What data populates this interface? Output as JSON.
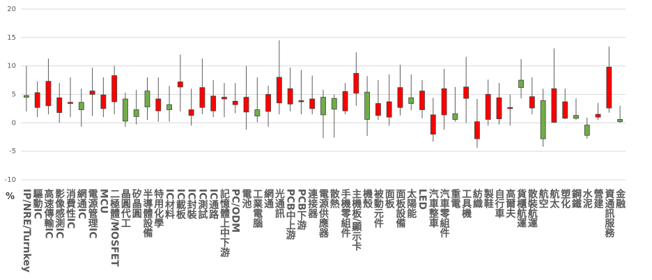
{
  "chart_data": {
    "type": "candlestick",
    "y_unit": "%",
    "categories": [
      "IP/NRE/Turnkey",
      "驅動IC",
      "高速傳輸IC",
      "影像感測IC",
      "消費性IC",
      "網通IC",
      "電源管理IC",
      "MCU",
      "二極體/MOSFET",
      "晶圓代工",
      "矽晶圓",
      "半導體設備",
      "特用化學",
      "IC材料",
      "IC載板",
      "IC封裝",
      "IC測試",
      "IC通路",
      "記憶體上中下游",
      "PC/ODM",
      "電池",
      "工業電腦",
      "網通",
      "光通訊",
      "PCB中上游",
      "PCB下游",
      "連接器",
      "電源供應器",
      "散熱",
      "手機零組件",
      "主機板/顯示卡",
      "機殼",
      "被動元件",
      "面板",
      "面板設備",
      "太陽能",
      "LED",
      "汽車整車",
      "汽車零組件",
      "重電",
      "工具機",
      "紡織",
      "製鞋",
      "自行車",
      "高爾夫",
      "貨櫃航運",
      "散裝航運",
      "航空",
      "航太",
      "塑化",
      "鋼鐵",
      "水泥",
      "營建",
      "資通訊服務",
      "金融"
    ],
    "open": [
      4.8,
      2.7,
      3,
      1.8,
      3.4,
      3.6,
      5,
      2.5,
      3.7,
      4.2,
      2.3,
      5.6,
      2.1,
      3.2,
      6.3,
      1.3,
      2.7,
      2.1,
      4.2,
      3.2,
      1.9,
      2.3,
      2,
      3.5,
      3.3,
      3.7,
      2.5,
      4.5,
      4.3,
      2.1,
      5.2,
      5.4,
      1.3,
      1,
      2.7,
      4.4,
      2.3,
      -2,
      1.4,
      1.6,
      4.3,
      -2.8,
      0.6,
      0.7,
      2.5,
      7.5,
      2.6,
      3.9,
      0.1,
      0.8,
      1.3,
      -0.4,
      1,
      2.6,
      0.6
    ],
    "close": [
      4.5,
      5.3,
      7.3,
      4.4,
      3.6,
      2.3,
      5.6,
      4.9,
      8.3,
      0.3,
      1.1,
      2.8,
      4.2,
      2.3,
      7.2,
      2.3,
      6.2,
      4.7,
      4.5,
      3.8,
      4.5,
      1.2,
      5,
      8,
      6,
      3.9,
      4.2,
      1.4,
      2.4,
      5.5,
      8.7,
      0.6,
      3.4,
      3.7,
      6.2,
      3.4,
      5.6,
      1.4,
      6,
      0.6,
      6.3,
      0.2,
      5,
      4.4,
      2.7,
      6.2,
      4.6,
      -2.8,
      6,
      3.7,
      0.8,
      -2.2,
      1.5,
      9.8,
      0.2
    ],
    "low": [
      2,
      1,
      1.5,
      0,
      1,
      -0.7,
      1.2,
      1,
      1.5,
      -0.7,
      -0.3,
      0.5,
      0.2,
      0.2,
      2,
      -0.5,
      1.5,
      1,
      1,
      1.7,
      -1.2,
      0.1,
      -0.7,
      1.5,
      2,
      1.5,
      1.5,
      -2.7,
      -2.6,
      1.5,
      3,
      -2.3,
      0.5,
      -0.5,
      1.3,
      2.2,
      0.8,
      -3.3,
      -1.2,
      0.2,
      0,
      -4.4,
      -0.5,
      -0.3,
      -0.5,
      4.3,
      1.5,
      -4.2,
      0,
      0.7,
      0.5,
      -2.8,
      0.5,
      1.8,
      0
    ],
    "high": [
      10,
      7.3,
      11.3,
      7,
      8,
      6,
      9.7,
      8,
      10,
      5.3,
      5.8,
      8,
      8,
      6.5,
      12,
      6,
      11.3,
      7.5,
      7,
      7,
      10,
      8,
      6.5,
      14.5,
      9.7,
      9.3,
      8.3,
      5.8,
      5,
      7,
      12.4,
      8.2,
      7.5,
      8.5,
      10.2,
      8.5,
      7.5,
      4.4,
      9.5,
      6.3,
      11.6,
      4.2,
      7.6,
      7,
      5,
      11.2,
      8,
      6,
      13.1,
      6,
      4.3,
      0.9,
      3.5,
      13.4,
      3
    ],
    "up_color": "#ff0000",
    "down_color": "#70ad47",
    "ylim": [
      -10,
      20
    ],
    "yticks": [
      -10,
      -5,
      0,
      5,
      10,
      15,
      20
    ],
    "grid": true
  }
}
